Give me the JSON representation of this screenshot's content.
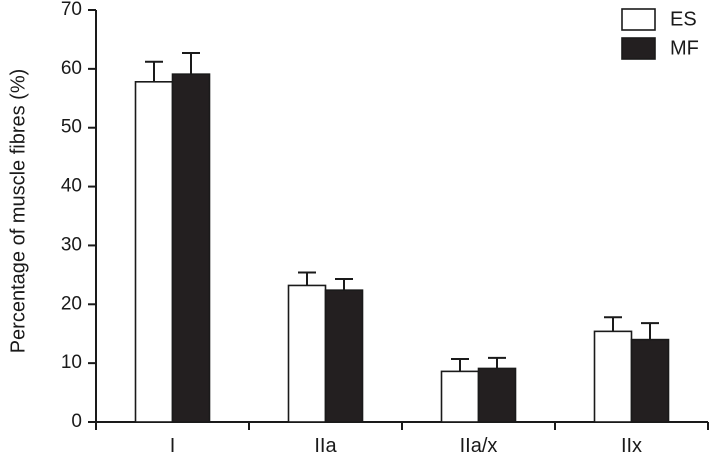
{
  "chart_data": {
    "type": "bar",
    "title": "",
    "xlabel": "",
    "ylabel": "Percentage of muscle fibres (%)",
    "ylim": [
      0,
      70
    ],
    "yticks": [
      0,
      10,
      20,
      30,
      40,
      50,
      60,
      70
    ],
    "categories": [
      "I",
      "IIa",
      "IIa/x",
      "IIx"
    ],
    "series": [
      {
        "name": "ES",
        "fill": "#ffffff",
        "values": [
          57.8,
          23.2,
          8.6,
          15.4
        ],
        "errors": [
          3.4,
          2.2,
          2.1,
          2.4
        ]
      },
      {
        "name": "MF",
        "fill": "#231f20",
        "values": [
          59.1,
          22.4,
          9.1,
          14.0
        ],
        "errors": [
          3.6,
          1.9,
          1.8,
          2.8
        ]
      }
    ],
    "legend_position": "top-right",
    "grid": false
  }
}
